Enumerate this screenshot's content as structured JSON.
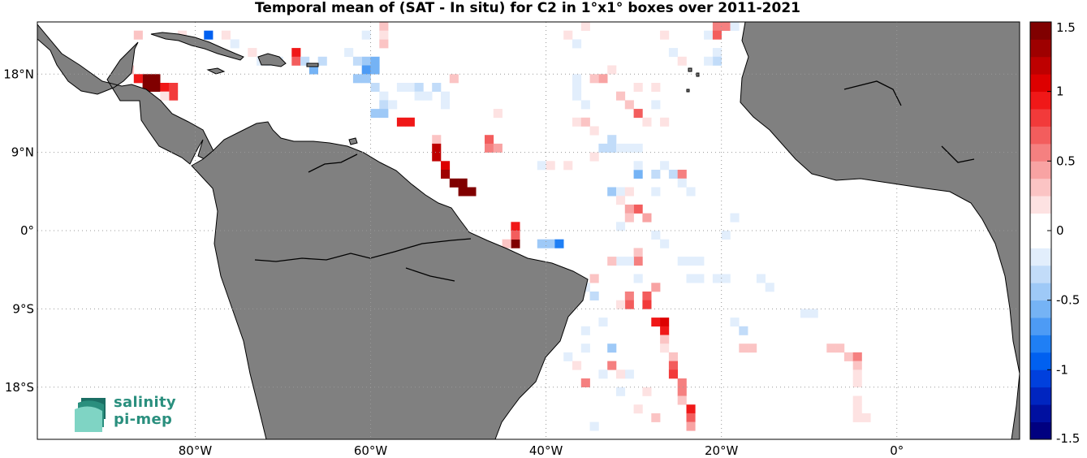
{
  "title": "Temporal mean of (SAT - In situ) for C2 in 1°x1° boxes over 2011-2021",
  "map": {
    "lon_range": [
      -98,
      14
    ],
    "lat_range": [
      -24,
      24
    ],
    "x_ticks": [
      {
        "value": -80,
        "label": "80°W"
      },
      {
        "value": -60,
        "label": "60°W"
      },
      {
        "value": -40,
        "label": "40°W"
      },
      {
        "value": -20,
        "label": "20°W"
      },
      {
        "value": 0,
        "label": "0°"
      }
    ],
    "y_ticks": [
      {
        "value": 18,
        "label": "18°N"
      },
      {
        "value": 9,
        "label": "9°N"
      },
      {
        "value": 0,
        "label": "0°"
      },
      {
        "value": -9,
        "label": "9°S"
      },
      {
        "value": -18,
        "label": "18°S"
      }
    ],
    "grid": "dotted",
    "land_color": "#808080",
    "coastline_color": "#000000"
  },
  "colorbar": {
    "min": -1.5,
    "max": 1.5,
    "ticks": [
      {
        "value": 1.5,
        "label": "1.5"
      },
      {
        "value": 1,
        "label": "1"
      },
      {
        "value": 0.5,
        "label": "0.5"
      },
      {
        "value": 0,
        "label": "0"
      },
      {
        "value": -0.5,
        "label": "-0.5"
      },
      {
        "value": -1,
        "label": "-1"
      },
      {
        "value": -1.5,
        "label": "-1.5"
      }
    ],
    "colors_low_to_high": [
      "#000080",
      "#0010a0",
      "#0025c0",
      "#0040dd",
      "#0060f0",
      "#1f7ff5",
      "#4d9bf5",
      "#75b3f5",
      "#9ec9f7",
      "#c2dcf9",
      "#e2eefc",
      "#ffffff",
      "#ffffff",
      "#fde2e2",
      "#fbc4c4",
      "#f8a3a3",
      "#f58080",
      "#f35d5d",
      "#f23a3a",
      "#f01818",
      "#dd0000",
      "#be0000",
      "#9e0000",
      "#800000"
    ]
  },
  "chart_data": {
    "type": "heatmap",
    "title": "Temporal mean of (SAT - In situ) for C2 in 1°x1° boxes over 2011-2021",
    "xlabel": "",
    "ylabel": "",
    "xlim": [
      -98,
      14
    ],
    "ylim": [
      -24,
      24
    ],
    "colorbar_range": [
      -1.5,
      1.5
    ],
    "cells": [
      {
        "lon": -86,
        "lat": 17,
        "v": 1.45
      },
      {
        "lon": -85,
        "lat": 17,
        "v": 1.45
      },
      {
        "lon": -85,
        "lat": 16,
        "v": 1.4
      },
      {
        "lon": -86,
        "lat": 16,
        "v": 1.4
      },
      {
        "lon": -87,
        "lat": 17,
        "v": 0.9
      },
      {
        "lon": -84,
        "lat": 16,
        "v": 0.9
      },
      {
        "lon": -83,
        "lat": 16,
        "v": 0.85
      },
      {
        "lon": -83,
        "lat": 15,
        "v": 0.8
      },
      {
        "lon": -88,
        "lat": 18,
        "v": 0.25
      },
      {
        "lon": -84,
        "lat": 15,
        "v": 0.2
      },
      {
        "lon": -87,
        "lat": 22,
        "v": 0.3
      },
      {
        "lon": -82,
        "lat": 22,
        "v": 0.2
      },
      {
        "lon": -79,
        "lat": 22,
        "v": -0.9
      },
      {
        "lon": -77,
        "lat": 22,
        "v": 0.2
      },
      {
        "lon": -76,
        "lat": 21,
        "v": -0.2
      },
      {
        "lon": -74,
        "lat": 20,
        "v": 0.2
      },
      {
        "lon": -69,
        "lat": 20,
        "v": 0.9
      },
      {
        "lon": -69,
        "lat": 19,
        "v": 0.7
      },
      {
        "lon": -71,
        "lat": 19,
        "v": -0.2
      },
      {
        "lon": -72,
        "lat": 19,
        "v": -0.3
      },
      {
        "lon": -73,
        "lat": 19,
        "v": -0.25
      },
      {
        "lon": -68,
        "lat": 19,
        "v": -0.3
      },
      {
        "lon": -67,
        "lat": 18,
        "v": -0.55
      },
      {
        "lon": -66,
        "lat": 19,
        "v": -0.3
      },
      {
        "lon": -61,
        "lat": 19,
        "v": -0.5
      },
      {
        "lon": -60,
        "lat": 19,
        "v": -0.6
      },
      {
        "lon": -61,
        "lat": 18,
        "v": -0.65
      },
      {
        "lon": -60,
        "lat": 18,
        "v": -0.6
      },
      {
        "lon": -62,
        "lat": 17,
        "v": -0.45
      },
      {
        "lon": -61,
        "lat": 17,
        "v": -0.5
      },
      {
        "lon": -62,
        "lat": 19,
        "v": -0.3
      },
      {
        "lon": -63,
        "lat": 20,
        "v": -0.2
      },
      {
        "lon": -61,
        "lat": 22,
        "v": -0.15
      },
      {
        "lon": -59,
        "lat": 21,
        "v": 0.3
      },
      {
        "lon": -59,
        "lat": 23,
        "v": 0.25
      },
      {
        "lon": -59,
        "lat": 22,
        "v": 0.2
      },
      {
        "lon": -60,
        "lat": 16,
        "v": -0.3
      },
      {
        "lon": -59,
        "lat": 15,
        "v": -0.25
      },
      {
        "lon": -59,
        "lat": 14,
        "v": -0.35
      },
      {
        "lon": -60,
        "lat": 13,
        "v": -0.4
      },
      {
        "lon": -59,
        "lat": 13,
        "v": -0.4
      },
      {
        "lon": -58,
        "lat": 14,
        "v": -0.2
      },
      {
        "lon": -57,
        "lat": 16,
        "v": -0.15
      },
      {
        "lon": -56,
        "lat": 16,
        "v": -0.2
      },
      {
        "lon": -55,
        "lat": 16,
        "v": -0.3
      },
      {
        "lon": -54,
        "lat": 15,
        "v": -0.2
      },
      {
        "lon": -53,
        "lat": 16,
        "v": -0.35
      },
      {
        "lon": -52,
        "lat": 15,
        "v": -0.15
      },
      {
        "lon": -52,
        "lat": 14,
        "v": -0.2
      },
      {
        "lon": -55,
        "lat": 15,
        "v": -0.15
      },
      {
        "lon": -57,
        "lat": 12,
        "v": 0.95
      },
      {
        "lon": -56,
        "lat": 12,
        "v": 0.95
      },
      {
        "lon": -53,
        "lat": 10,
        "v": 0.3
      },
      {
        "lon": -53,
        "lat": 9,
        "v": 1.2
      },
      {
        "lon": -53,
        "lat": 8,
        "v": 1.2
      },
      {
        "lon": -52,
        "lat": 7,
        "v": 1.1
      },
      {
        "lon": -52,
        "lat": 6,
        "v": 1.35
      },
      {
        "lon": -51,
        "lat": 5,
        "v": 1.4
      },
      {
        "lon": -50,
        "lat": 5,
        "v": 1.4
      },
      {
        "lon": -50,
        "lat": 4,
        "v": 1.45
      },
      {
        "lon": -49,
        "lat": 4,
        "v": 1.45
      },
      {
        "lon": -47,
        "lat": 10,
        "v": 0.7
      },
      {
        "lon": -47,
        "lat": 9,
        "v": 0.55
      },
      {
        "lon": -46,
        "lat": 9,
        "v": 0.4
      },
      {
        "lon": -46,
        "lat": 13,
        "v": 0.2
      },
      {
        "lon": -51,
        "lat": 17,
        "v": 0.3
      },
      {
        "lon": -44,
        "lat": 0,
        "v": 0.9
      },
      {
        "lon": -44,
        "lat": -2,
        "v": 1.45
      },
      {
        "lon": -44,
        "lat": -1,
        "v": 0.7
      },
      {
        "lon": -41,
        "lat": -2,
        "v": -0.4
      },
      {
        "lon": -40,
        "lat": -2,
        "v": -0.5
      },
      {
        "lon": -39,
        "lat": -2,
        "v": -0.8
      },
      {
        "lon": -45,
        "lat": -2,
        "v": 0.3
      },
      {
        "lon": -41,
        "lat": 7,
        "v": -0.2
      },
      {
        "lon": -40,
        "lat": 7,
        "v": 0.15
      },
      {
        "lon": -38,
        "lat": 7,
        "v": 0.2
      },
      {
        "lon": -37,
        "lat": 17,
        "v": -0.2
      },
      {
        "lon": -37,
        "lat": 16,
        "v": -0.2
      },
      {
        "lon": -37,
        "lat": 15,
        "v": -0.15
      },
      {
        "lon": -36,
        "lat": 14,
        "v": -0.2
      },
      {
        "lon": -37,
        "lat": 12,
        "v": 0.2
      },
      {
        "lon": -36,
        "lat": 12,
        "v": 0.25
      },
      {
        "lon": -35,
        "lat": 11,
        "v": 0.2
      },
      {
        "lon": -34,
        "lat": 17,
        "v": 0.4
      },
      {
        "lon": -35,
        "lat": 17,
        "v": 0.3
      },
      {
        "lon": -33,
        "lat": 18,
        "v": 0.2
      },
      {
        "lon": -38,
        "lat": 22,
        "v": 0.2
      },
      {
        "lon": -37,
        "lat": 21,
        "v": -0.2
      },
      {
        "lon": -36,
        "lat": 23,
        "v": 0.15
      },
      {
        "lon": -33,
        "lat": 10,
        "v": -0.3
      },
      {
        "lon": -34,
        "lat": 9,
        "v": -0.35
      },
      {
        "lon": -33,
        "lat": 9,
        "v": -0.3
      },
      {
        "lon": -32,
        "lat": 9,
        "v": -0.2
      },
      {
        "lon": -35,
        "lat": 8,
        "v": 0.2
      },
      {
        "lon": -31,
        "lat": 9,
        "v": -0.15
      },
      {
        "lon": -30,
        "lat": 9,
        "v": -0.2
      },
      {
        "lon": -30,
        "lat": 6,
        "v": -0.55
      },
      {
        "lon": -30,
        "lat": 7,
        "v": -0.2
      },
      {
        "lon": -33,
        "lat": 4,
        "v": -0.5
      },
      {
        "lon": -32,
        "lat": 4,
        "v": -0.25
      },
      {
        "lon": -31,
        "lat": 4,
        "v": 0.2
      },
      {
        "lon": -32,
        "lat": 3,
        "v": 0.2
      },
      {
        "lon": -30,
        "lat": 2,
        "v": 0.7
      },
      {
        "lon": -31,
        "lat": 2,
        "v": 0.4
      },
      {
        "lon": -31,
        "lat": 1,
        "v": 0.3
      },
      {
        "lon": -32,
        "lat": 0,
        "v": -0.2
      },
      {
        "lon": -30,
        "lat": -3,
        "v": 0.3
      },
      {
        "lon": -30,
        "lat": -4,
        "v": 0.6
      },
      {
        "lon": -31,
        "lat": -4,
        "v": -0.2
      },
      {
        "lon": -32,
        "lat": -4,
        "v": -0.15
      },
      {
        "lon": -33,
        "lat": -4,
        "v": 0.25
      },
      {
        "lon": -30,
        "lat": 16,
        "v": 0.2
      },
      {
        "lon": -32,
        "lat": 15,
        "v": 0.3
      },
      {
        "lon": -31,
        "lat": 14,
        "v": 0.25
      },
      {
        "lon": -30,
        "lat": 13,
        "v": 0.7
      },
      {
        "lon": -29,
        "lat": 12,
        "v": 0.2
      },
      {
        "lon": -28,
        "lat": 14,
        "v": -0.2
      },
      {
        "lon": -27,
        "lat": 12,
        "v": 0.15
      },
      {
        "lon": -28,
        "lat": 16,
        "v": 0.2
      },
      {
        "lon": -27,
        "lat": 22,
        "v": 0.15
      },
      {
        "lon": -26,
        "lat": 20,
        "v": -0.15
      },
      {
        "lon": -25,
        "lat": 19,
        "v": 0.15
      },
      {
        "lon": -28,
        "lat": 6,
        "v": -0.3
      },
      {
        "lon": -27,
        "lat": 7,
        "v": -0.25
      },
      {
        "lon": -26,
        "lat": 6,
        "v": -0.3
      },
      {
        "lon": -25,
        "lat": 6,
        "v": 0.6
      },
      {
        "lon": -25,
        "lat": 5,
        "v": -0.2
      },
      {
        "lon": -24,
        "lat": 4,
        "v": -0.25
      },
      {
        "lon": -28,
        "lat": 4,
        "v": -0.2
      },
      {
        "lon": -29,
        "lat": 1,
        "v": 0.4
      },
      {
        "lon": -28,
        "lat": -1,
        "v": -0.2
      },
      {
        "lon": -27,
        "lat": -2,
        "v": -0.2
      },
      {
        "lon": -25,
        "lat": -4,
        "v": -0.15
      },
      {
        "lon": -24,
        "lat": -4,
        "v": -0.2
      },
      {
        "lon": -23,
        "lat": -4,
        "v": -0.15
      },
      {
        "lon": -24,
        "lat": -6,
        "v": -0.2
      },
      {
        "lon": -23,
        "lat": -6,
        "v": -0.15
      },
      {
        "lon": -20,
        "lat": -1,
        "v": -0.2
      },
      {
        "lon": -22,
        "lat": 22,
        "v": -0.2
      },
      {
        "lon": -21,
        "lat": 23,
        "v": 0.5
      },
      {
        "lon": -20,
        "lat": 23,
        "v": 0.6
      },
      {
        "lon": -21,
        "lat": 22,
        "v": 0.7
      },
      {
        "lon": -21,
        "lat": 20,
        "v": -0.2
      },
      {
        "lon": -21,
        "lat": 19,
        "v": -0.3
      },
      {
        "lon": -22,
        "lat": 19,
        "v": -0.15
      },
      {
        "lon": -19,
        "lat": 23,
        "v": -0.15
      },
      {
        "lon": -28,
        "lat": -7,
        "v": 0.4
      },
      {
        "lon": -29,
        "lat": -8,
        "v": 0.7
      },
      {
        "lon": -29,
        "lat": -9,
        "v": 0.75
      },
      {
        "lon": -28,
        "lat": -11,
        "v": 0.9
      },
      {
        "lon": -27,
        "lat": -11,
        "v": 1.0
      },
      {
        "lon": -27,
        "lat": -12,
        "v": 0.95
      },
      {
        "lon": -27,
        "lat": -13,
        "v": 0.3
      },
      {
        "lon": -27,
        "lat": -14,
        "v": 0.2
      },
      {
        "lon": -26,
        "lat": -15,
        "v": 0.3
      },
      {
        "lon": -26,
        "lat": -16,
        "v": 0.7
      },
      {
        "lon": -26,
        "lat": -17,
        "v": 0.8
      },
      {
        "lon": -25,
        "lat": -18,
        "v": 0.6
      },
      {
        "lon": -25,
        "lat": -19,
        "v": 0.5
      },
      {
        "lon": -25,
        "lat": -20,
        "v": 0.3
      },
      {
        "lon": -24,
        "lat": -21,
        "v": 0.95
      },
      {
        "lon": -24,
        "lat": -22,
        "v": 0.7
      },
      {
        "lon": -24,
        "lat": -23,
        "v": 0.4
      },
      {
        "lon": -31,
        "lat": -8,
        "v": 0.6
      },
      {
        "lon": -31,
        "lat": -9,
        "v": 0.7
      },
      {
        "lon": -32,
        "lat": -9,
        "v": 0.2
      },
      {
        "lon": -30,
        "lat": -6,
        "v": -0.2
      },
      {
        "lon": -35,
        "lat": -6,
        "v": 0.25
      },
      {
        "lon": -35,
        "lat": -8,
        "v": -0.3
      },
      {
        "lon": -36,
        "lat": -7,
        "v": -0.2
      },
      {
        "lon": -34,
        "lat": -11,
        "v": -0.2
      },
      {
        "lon": -36,
        "lat": -12,
        "v": -0.15
      },
      {
        "lon": -33,
        "lat": -14,
        "v": -0.45
      },
      {
        "lon": -36,
        "lat": -14,
        "v": -0.2
      },
      {
        "lon": -38,
        "lat": -15,
        "v": -0.15
      },
      {
        "lon": -37,
        "lat": -16,
        "v": 0.2
      },
      {
        "lon": -33,
        "lat": -16,
        "v": 0.6
      },
      {
        "lon": -34,
        "lat": -17,
        "v": -0.2
      },
      {
        "lon": -31,
        "lat": -17,
        "v": -0.15
      },
      {
        "lon": -32,
        "lat": -17,
        "v": 0.2
      },
      {
        "lon": -36,
        "lat": -18,
        "v": 0.6
      },
      {
        "lon": -32,
        "lat": -19,
        "v": -0.2
      },
      {
        "lon": -29,
        "lat": -19,
        "v": 0.2
      },
      {
        "lon": -30,
        "lat": -21,
        "v": 0.15
      },
      {
        "lon": -28,
        "lat": -22,
        "v": 0.3
      },
      {
        "lon": -35,
        "lat": -23,
        "v": -0.15
      },
      {
        "lon": -21,
        "lat": -6,
        "v": -0.2
      },
      {
        "lon": -20,
        "lat": -6,
        "v": -0.15
      },
      {
        "lon": -16,
        "lat": -6,
        "v": -0.15
      },
      {
        "lon": -15,
        "lat": -7,
        "v": -0.2
      },
      {
        "lon": -19,
        "lat": -11,
        "v": -0.2
      },
      {
        "lon": -18,
        "lat": -12,
        "v": -0.3
      },
      {
        "lon": -11,
        "lat": -10,
        "v": -0.15
      },
      {
        "lon": -10,
        "lat": -10,
        "v": -0.2
      },
      {
        "lon": -18,
        "lat": -14,
        "v": 0.3
      },
      {
        "lon": -17,
        "lat": -14,
        "v": 0.3
      },
      {
        "lon": -8,
        "lat": -14,
        "v": 0.3
      },
      {
        "lon": -7,
        "lat": -14,
        "v": 0.3
      },
      {
        "lon": -6,
        "lat": -15,
        "v": 0.3
      },
      {
        "lon": -5,
        "lat": -15,
        "v": 0.6
      },
      {
        "lon": -5,
        "lat": -16,
        "v": 0.25
      },
      {
        "lon": -5,
        "lat": -17,
        "v": 0.2
      },
      {
        "lon": -5,
        "lat": -18,
        "v": 0.2
      },
      {
        "lon": -5,
        "lat": -20,
        "v": 0.15
      },
      {
        "lon": -5,
        "lat": -21,
        "v": 0.15
      },
      {
        "lon": -5,
        "lat": -22,
        "v": 0.2
      },
      {
        "lon": -4,
        "lat": -22,
        "v": 0.2
      },
      {
        "lon": -19,
        "lat": 1,
        "v": -0.15
      }
    ]
  },
  "logo": {
    "line1": "salinity",
    "line2": "pi-mep"
  }
}
